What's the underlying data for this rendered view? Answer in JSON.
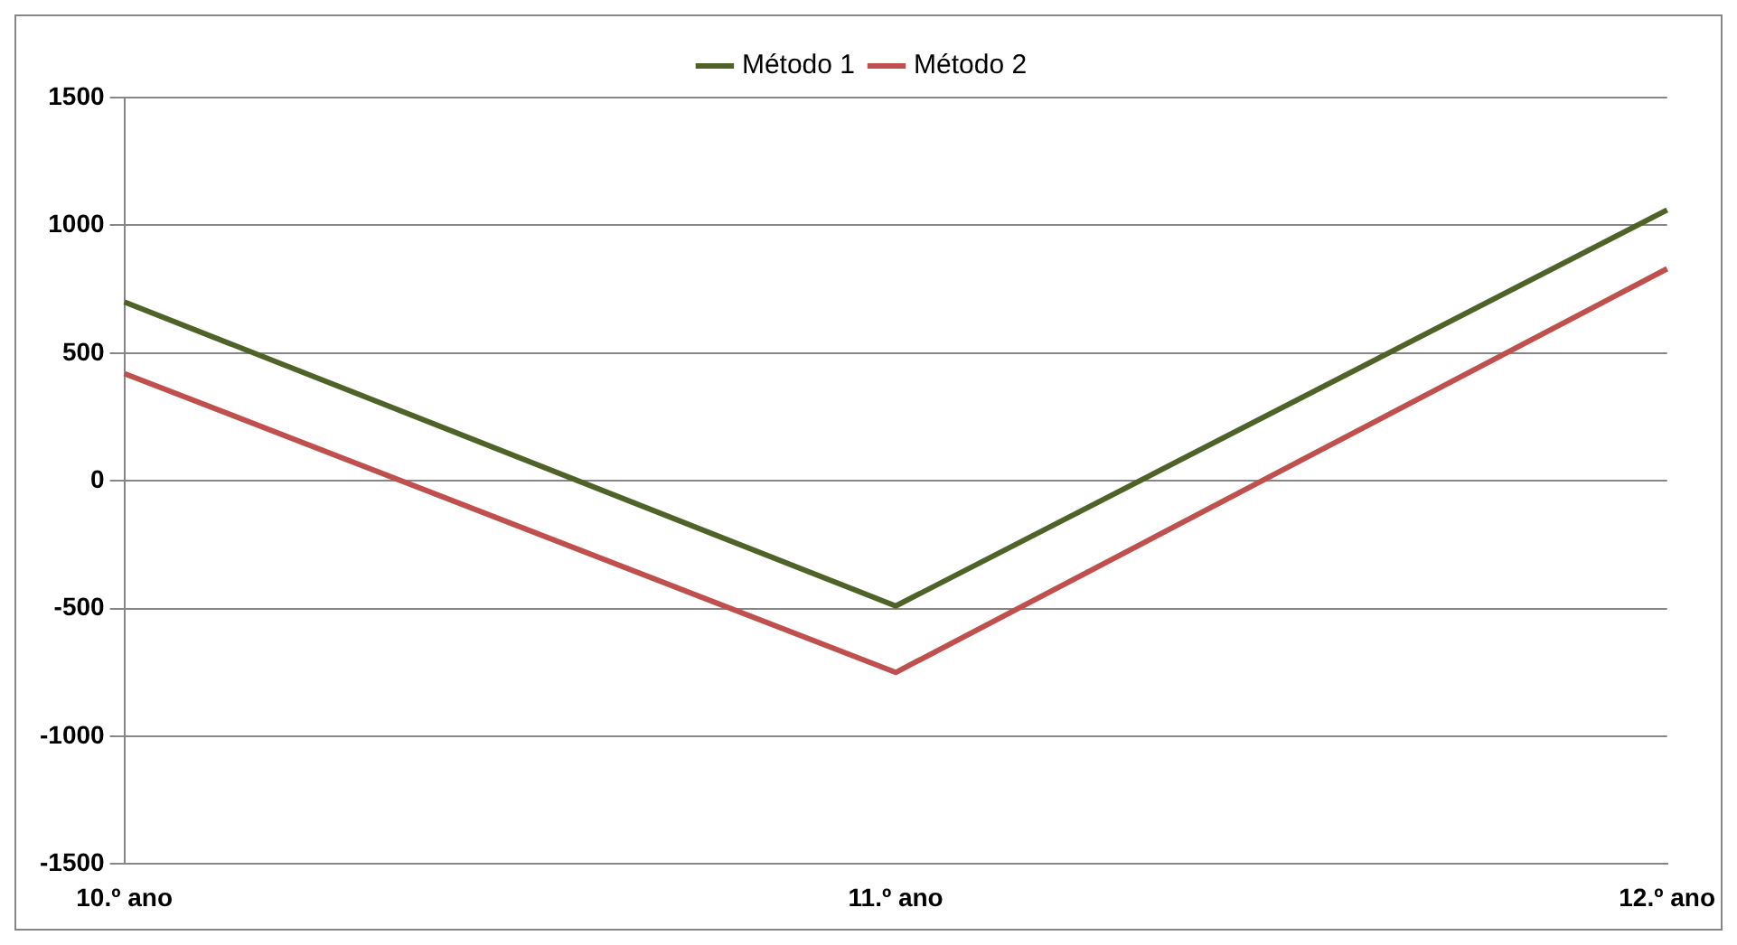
{
  "chart_data": {
    "type": "line",
    "categories": [
      "10.º ano",
      "11.º ano",
      "12.º ano"
    ],
    "series": [
      {
        "name": "Método 1",
        "color": "#4f6228",
        "values": [
          700,
          -490,
          1060
        ]
      },
      {
        "name": "Método 2",
        "color": "#c0504d",
        "values": [
          420,
          -750,
          830
        ]
      }
    ],
    "ylim": [
      -1500,
      1500
    ],
    "yticks": [
      -1500,
      -1000,
      -500,
      0,
      500,
      1000,
      1500
    ],
    "grid": "y",
    "legend": "top",
    "marker": "none",
    "line_style": "solid"
  }
}
